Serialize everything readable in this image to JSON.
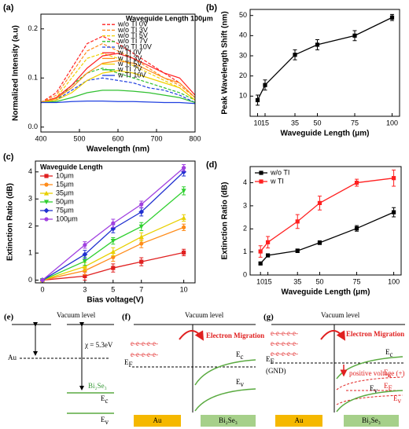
{
  "chart_data": [
    {
      "type": "line",
      "label": "(a)",
      "xlabel": "Wavelength (nm)",
      "ylabel": "Normalized Intensity (a.u)",
      "x": [
        400,
        440,
        480,
        520,
        560,
        600,
        640,
        680,
        720,
        760,
        800
      ],
      "xlim": [
        400,
        800
      ],
      "ylim": [
        -0.01,
        0.23
      ],
      "xticks": [
        400,
        500,
        600,
        700,
        800
      ],
      "yticks": [
        {
          "value": 0,
          "label": "0.0"
        },
        0.1,
        0.2
      ],
      "legend": "upper right",
      "legend_title": "Waveguide Length 100μm",
      "series": [
        {
          "name": "w/o TI 0V",
          "color": "#ff2020",
          "dashed": true,
          "values": [
            0.05,
            0.07,
            0.12,
            0.17,
            0.185,
            0.17,
            0.15,
            0.13,
            0.11,
            0.09,
            0.06
          ]
        },
        {
          "name": "w/o TI 3V",
          "color": "#ff8c1a",
          "dashed": true,
          "values": [
            0.05,
            0.065,
            0.11,
            0.155,
            0.17,
            0.155,
            0.14,
            0.12,
            0.1,
            0.085,
            0.06
          ]
        },
        {
          "name": "w/o TI 5V",
          "color": "#f0d000",
          "dashed": true,
          "values": [
            0.05,
            0.06,
            0.1,
            0.14,
            0.15,
            0.14,
            0.125,
            0.11,
            0.095,
            0.08,
            0.055
          ]
        },
        {
          "name": "w/o TI 7V",
          "color": "#30c030",
          "dashed": true,
          "values": [
            0.05,
            0.055,
            0.085,
            0.11,
            0.12,
            0.11,
            0.1,
            0.09,
            0.08,
            0.07,
            0.055
          ]
        },
        {
          "name": "w/o TI 10V",
          "color": "#2040e0",
          "dashed": true,
          "values": [
            0.05,
            0.055,
            0.075,
            0.095,
            0.1,
            0.095,
            0.09,
            0.08,
            0.075,
            0.065,
            0.05
          ]
        },
        {
          "name": "w TI 0V",
          "color": "#ff2020",
          "dashed": false,
          "values": [
            0.05,
            0.06,
            0.085,
            0.12,
            0.145,
            0.15,
            0.14,
            0.125,
            0.11,
            0.1,
            0.065
          ]
        },
        {
          "name": "w TI 3V",
          "color": "#ff8c1a",
          "dashed": false,
          "values": [
            0.05,
            0.058,
            0.08,
            0.11,
            0.13,
            0.135,
            0.13,
            0.115,
            0.1,
            0.09,
            0.06
          ]
        },
        {
          "name": "w TI 5V",
          "color": "#f0d000",
          "dashed": false,
          "values": [
            0.05,
            0.055,
            0.07,
            0.095,
            0.11,
            0.115,
            0.11,
            0.1,
            0.09,
            0.08,
            0.055
          ]
        },
        {
          "name": "w TI 7V",
          "color": "#30c030",
          "dashed": false,
          "values": [
            0.05,
            0.052,
            0.06,
            0.07,
            0.075,
            0.075,
            0.073,
            0.07,
            0.065,
            0.06,
            0.05
          ]
        },
        {
          "name": "w TI 10V",
          "color": "#2040e0",
          "dashed": false,
          "values": [
            0.05,
            0.05,
            0.052,
            0.053,
            0.053,
            0.052,
            0.052,
            0.051,
            0.05,
            0.05,
            0.048
          ]
        }
      ]
    },
    {
      "type": "line",
      "label": "(b)",
      "xlabel": "Waveguide Length (μm)",
      "ylabel": "Peak Wavelength Shift (nm)",
      "x": [
        10,
        15,
        35,
        50,
        75,
        100
      ],
      "xlim": [
        5,
        105
      ],
      "ylim": [
        0,
        53
      ],
      "xticks": [
        10,
        15,
        35,
        50,
        75,
        100
      ],
      "yticks": [
        10,
        20,
        30,
        40,
        50
      ],
      "series": [
        {
          "color": "#000000",
          "marker": "square",
          "values": [
            8,
            15.5,
            30.5,
            35.5,
            40,
            49
          ],
          "errors": [
            2.5,
            2.5,
            2.5,
            2.5,
            2.5,
            1.5
          ]
        }
      ]
    },
    {
      "type": "line",
      "label": "(c)",
      "xlabel": "Bias voltage(V)",
      "ylabel": "Extinction Ratio (dB)",
      "x": [
        0,
        3,
        5,
        7,
        10
      ],
      "xlim": [
        -0.5,
        10.8
      ],
      "ylim": [
        -0.1,
        4.4
      ],
      "xticks": [
        0,
        3,
        5,
        7,
        10
      ],
      "yticks": [
        0,
        1,
        2,
        3,
        4
      ],
      "legend": "upper left",
      "legend_title": "Waveguide Length",
      "series": [
        {
          "name": "10μm",
          "color": "#e02020",
          "marker": "square",
          "values": [
            0,
            0.15,
            0.45,
            0.68,
            1.02
          ],
          "errors": [
            0,
            0.15,
            0.15,
            0.15,
            0.12
          ]
        },
        {
          "name": "15μm",
          "color": "#ff8c1a",
          "marker": "circle",
          "values": [
            0,
            0.35,
            0.85,
            1.35,
            1.95
          ],
          "errors": [
            0,
            0.15,
            0.15,
            0.15,
            0.12
          ]
        },
        {
          "name": "35μm",
          "color": "#e8d000",
          "marker": "triangle",
          "values": [
            0,
            0.5,
            1.05,
            1.6,
            2.3
          ],
          "errors": [
            0,
            0.15,
            0.15,
            0.15,
            0.12
          ]
        },
        {
          "name": "50μm",
          "color": "#30d030",
          "marker": "triangle-down",
          "values": [
            0,
            0.7,
            1.45,
            1.98,
            3.3
          ],
          "errors": [
            0,
            0.15,
            0.12,
            0.15,
            0.15
          ]
        },
        {
          "name": "75μm",
          "color": "#2030d0",
          "marker": "diamond",
          "values": [
            0,
            0.95,
            1.9,
            2.52,
            4.0
          ],
          "errors": [
            0,
            0.15,
            0.15,
            0.15,
            0.15
          ]
        },
        {
          "name": "100μm",
          "color": "#a040e0",
          "marker": "circle",
          "values": [
            0,
            1.3,
            2.1,
            2.8,
            4.15
          ],
          "errors": [
            0,
            0.12,
            0.15,
            0.12,
            0.12
          ]
        }
      ]
    },
    {
      "type": "line",
      "label": "(d)",
      "xlabel": "Waveguide Length (μm)",
      "ylabel": "Extinction Ratio (dB)",
      "x": [
        10,
        15,
        35,
        50,
        75,
        100
      ],
      "xlim": [
        3,
        105
      ],
      "ylim": [
        0,
        4.7
      ],
      "xticks": [
        10,
        15,
        35,
        50,
        75,
        100
      ],
      "yticks": [
        0,
        1,
        2,
        3,
        4
      ],
      "legend": "upper left",
      "series": [
        {
          "name": "w/o TI",
          "color": "#000000",
          "marker": "square",
          "values": [
            0.5,
            0.85,
            1.05,
            1.4,
            2.02,
            2.72
          ],
          "errors": [
            0.05,
            0.05,
            0.08,
            0.08,
            0.12,
            0.2
          ]
        },
        {
          "name": "w TI",
          "color": "#ff2020",
          "marker": "square",
          "values": [
            1.02,
            1.42,
            2.32,
            3.12,
            4.0,
            4.2
          ],
          "errors": [
            0.25,
            0.25,
            0.3,
            0.3,
            0.15,
            0.35
          ]
        }
      ]
    }
  ],
  "diagrams": {
    "e": {
      "label": "(e)",
      "vacuum": "Vacuum level",
      "au": "Au",
      "chi": "χ = 5.3eV",
      "material": "Bi₂Se₃",
      "ec": {
        "base": "E",
        "sub": "c"
      },
      "ev": {
        "base": "E",
        "sub": "v"
      }
    },
    "f": {
      "label": "(f)",
      "vacuum": "Vacuum level",
      "migration": "Electron Migration",
      "electrons": [
        "e-e-e-e-e-",
        "e-e-e-e-e-"
      ],
      "ec": {
        "base": "E",
        "sub": "c"
      },
      "ef": {
        "base": "E",
        "sub": "F"
      },
      "ev": {
        "base": "E",
        "sub": "v"
      },
      "au": "Au",
      "material": "Bi₂Se₃"
    },
    "g": {
      "label": "(g)",
      "vacuum": "Vacuum level",
      "migration": "Electron Migration",
      "electrons": [
        "e-e-e-e-e-",
        "e-e-e-e-e-",
        "e-e-e-e-e-"
      ],
      "ec": {
        "base": "E",
        "sub": "c"
      },
      "ef": {
        "base": "E",
        "sub": "F"
      },
      "gnd": "(GND)",
      "voltage": "positive voltage (+)",
      "ec_shift": {
        "base": "E",
        "sub": "c"
      },
      "ef_shift": {
        "base": "E",
        "sub": "F"
      },
      "ev_shift": {
        "base": "E",
        "sub": "v"
      },
      "ev": {
        "base": "E",
        "sub": "v"
      },
      "au": "Au",
      "material": "Bi₂Se₃"
    }
  }
}
